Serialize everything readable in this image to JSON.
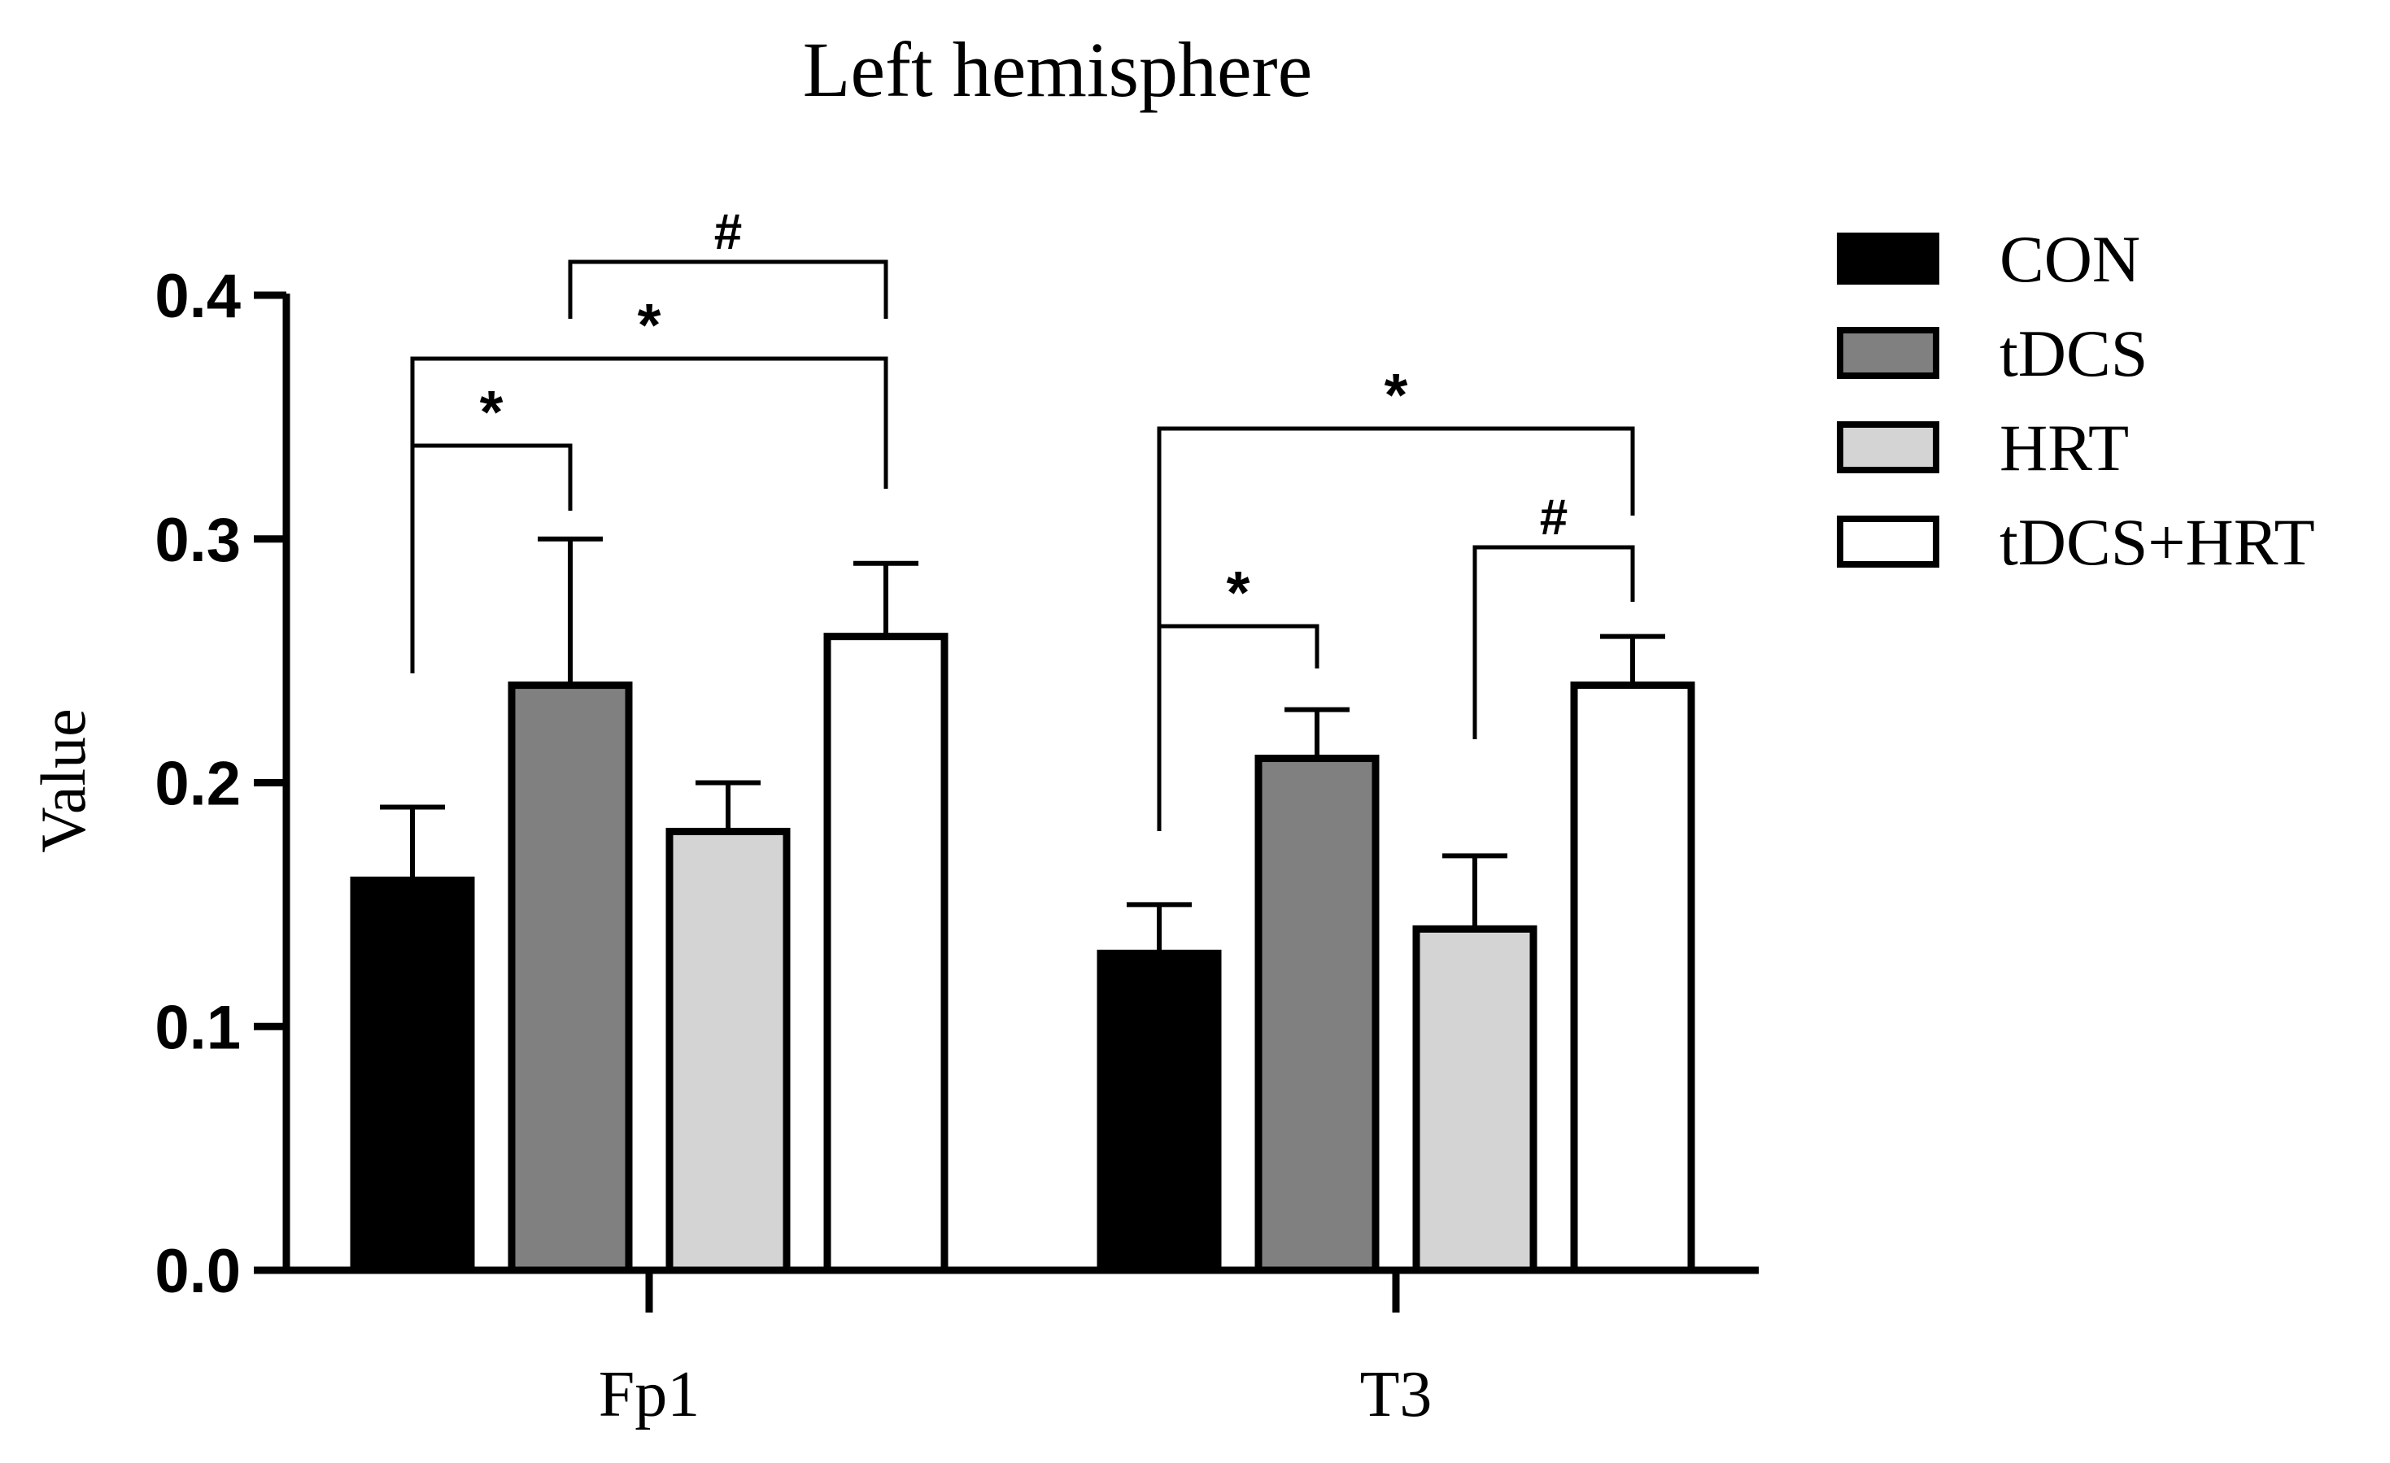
{
  "chart_data": {
    "type": "bar",
    "title": "Left hemisphere",
    "xlabel": "",
    "ylabel": "Value",
    "ylim": [
      0,
      0.4
    ],
    "yticks": [
      "0.0",
      "0.1",
      "0.2",
      "0.3",
      "0.4"
    ],
    "categories": [
      "Fp1",
      "T3"
    ],
    "legend_position": "top-right",
    "series": [
      {
        "name": "CON",
        "color": "#000000",
        "values": [
          0.16,
          0.13
        ],
        "errors": [
          0.03,
          0.02
        ]
      },
      {
        "name": "tDCS",
        "color": "#808080",
        "values": [
          0.24,
          0.21
        ],
        "errors": [
          0.06,
          0.02
        ]
      },
      {
        "name": "HRT",
        "color": "#d4d4d4",
        "values": [
          0.18,
          0.14
        ],
        "errors": [
          0.02,
          0.03
        ]
      },
      {
        "name": "tDCS+HRT",
        "color": "#ffffff",
        "values": [
          0.26,
          0.24
        ],
        "errors": [
          0.03,
          0.02
        ]
      }
    ],
    "annotations": [
      {
        "category": 0,
        "from": 1,
        "to": 3,
        "label": "#"
      },
      {
        "category": 0,
        "from": 0,
        "to": 3,
        "label": "*"
      },
      {
        "category": 0,
        "from": 0,
        "to": 1,
        "label": "*"
      },
      {
        "category": 1,
        "from": 0,
        "to": 3,
        "label": "*"
      },
      {
        "category": 1,
        "from": 2,
        "to": 3,
        "label": "#"
      },
      {
        "category": 1,
        "from": 0,
        "to": 1,
        "label": "*"
      }
    ]
  }
}
